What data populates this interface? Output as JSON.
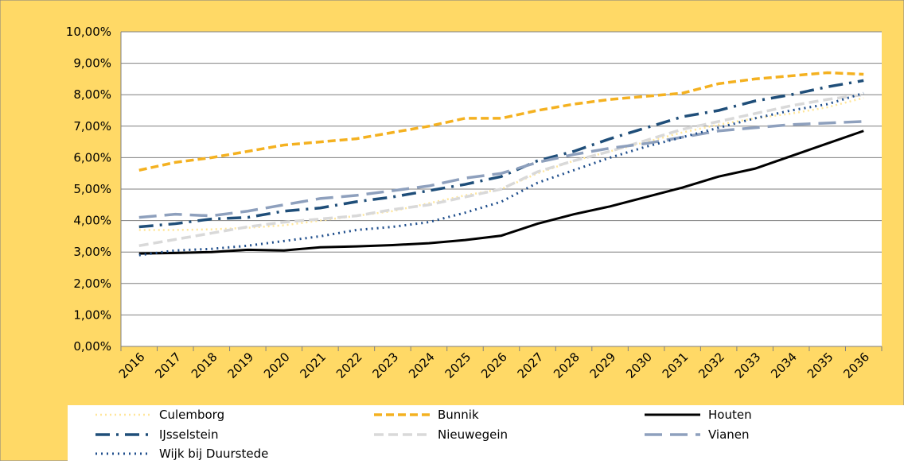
{
  "chart_data": {
    "type": "line",
    "categories": [
      "2016",
      "2017",
      "2018",
      "2019",
      "2020",
      "2021",
      "2022",
      "2023",
      "2024",
      "2025",
      "2026",
      "2027",
      "2028",
      "2029",
      "2030",
      "2031",
      "2032",
      "2033",
      "2034",
      "2035",
      "2036"
    ],
    "ylim": [
      0,
      10
    ],
    "yticks": [
      {
        "value": 0,
        "label": "0,00%"
      },
      {
        "value": 1,
        "label": "1,00%"
      },
      {
        "value": 2,
        "label": "2,00%"
      },
      {
        "value": 3,
        "label": "3,00%"
      },
      {
        "value": 4,
        "label": "4,00%"
      },
      {
        "value": 5,
        "label": "5,00%"
      },
      {
        "value": 6,
        "label": "6,00%"
      },
      {
        "value": 7,
        "label": "7,00%"
      },
      {
        "value": 8,
        "label": "8,00%"
      },
      {
        "value": 9,
        "label": "9,00%"
      },
      {
        "value": 10,
        "label": "10,00%"
      }
    ],
    "grid": true,
    "series": [
      {
        "name": "Culemborg",
        "color": "#FFE699",
        "values": [
          3.7,
          3.7,
          3.72,
          3.77,
          3.85,
          4.0,
          4.15,
          4.3,
          4.55,
          4.8,
          5.0,
          5.5,
          5.9,
          6.2,
          6.5,
          6.8,
          7.05,
          7.25,
          7.4,
          7.6,
          7.9
        ]
      },
      {
        "name": "Bunnik",
        "color": "#F4B120",
        "values": [
          5.6,
          5.85,
          6.0,
          6.2,
          6.4,
          6.5,
          6.6,
          6.8,
          7.0,
          7.25,
          7.25,
          7.5,
          7.7,
          7.85,
          7.95,
          8.05,
          8.35,
          8.5,
          8.6,
          8.7,
          8.65
        ]
      },
      {
        "name": "Houten",
        "color": "#000000",
        "values": [
          2.95,
          2.97,
          3.0,
          3.07,
          3.05,
          3.15,
          3.18,
          3.22,
          3.28,
          3.38,
          3.52,
          3.9,
          4.2,
          4.45,
          4.75,
          5.05,
          5.4,
          5.65,
          6.05,
          6.45,
          6.85
        ]
      },
      {
        "name": "IJsselstein",
        "color": "#1F4E79",
        "values": [
          3.8,
          3.9,
          4.05,
          4.1,
          4.3,
          4.4,
          4.6,
          4.75,
          4.95,
          5.15,
          5.4,
          5.9,
          6.2,
          6.6,
          6.95,
          7.3,
          7.5,
          7.8,
          8.0,
          8.25,
          8.45
        ]
      },
      {
        "name": "Nieuwegein",
        "color": "#D9D9D9",
        "values": [
          3.2,
          3.4,
          3.6,
          3.8,
          3.95,
          4.05,
          4.15,
          4.35,
          4.5,
          4.75,
          5.0,
          5.55,
          5.9,
          6.2,
          6.55,
          6.9,
          7.15,
          7.4,
          7.65,
          7.85,
          8.0
        ]
      },
      {
        "name": "Vianen",
        "color": "#8EA0BD",
        "values": [
          4.1,
          4.2,
          4.15,
          4.3,
          4.5,
          4.7,
          4.8,
          4.95,
          5.1,
          5.35,
          5.5,
          5.85,
          6.1,
          6.3,
          6.45,
          6.65,
          6.85,
          6.95,
          7.05,
          7.1,
          7.15
        ]
      },
      {
        "name": "Wijk bij Duurstede",
        "color": "#1F4E8C",
        "values": [
          2.9,
          3.05,
          3.1,
          3.2,
          3.35,
          3.5,
          3.7,
          3.8,
          3.95,
          4.25,
          4.6,
          5.2,
          5.6,
          6.0,
          6.35,
          6.65,
          6.95,
          7.25,
          7.5,
          7.7,
          8.05
        ]
      }
    ]
  }
}
